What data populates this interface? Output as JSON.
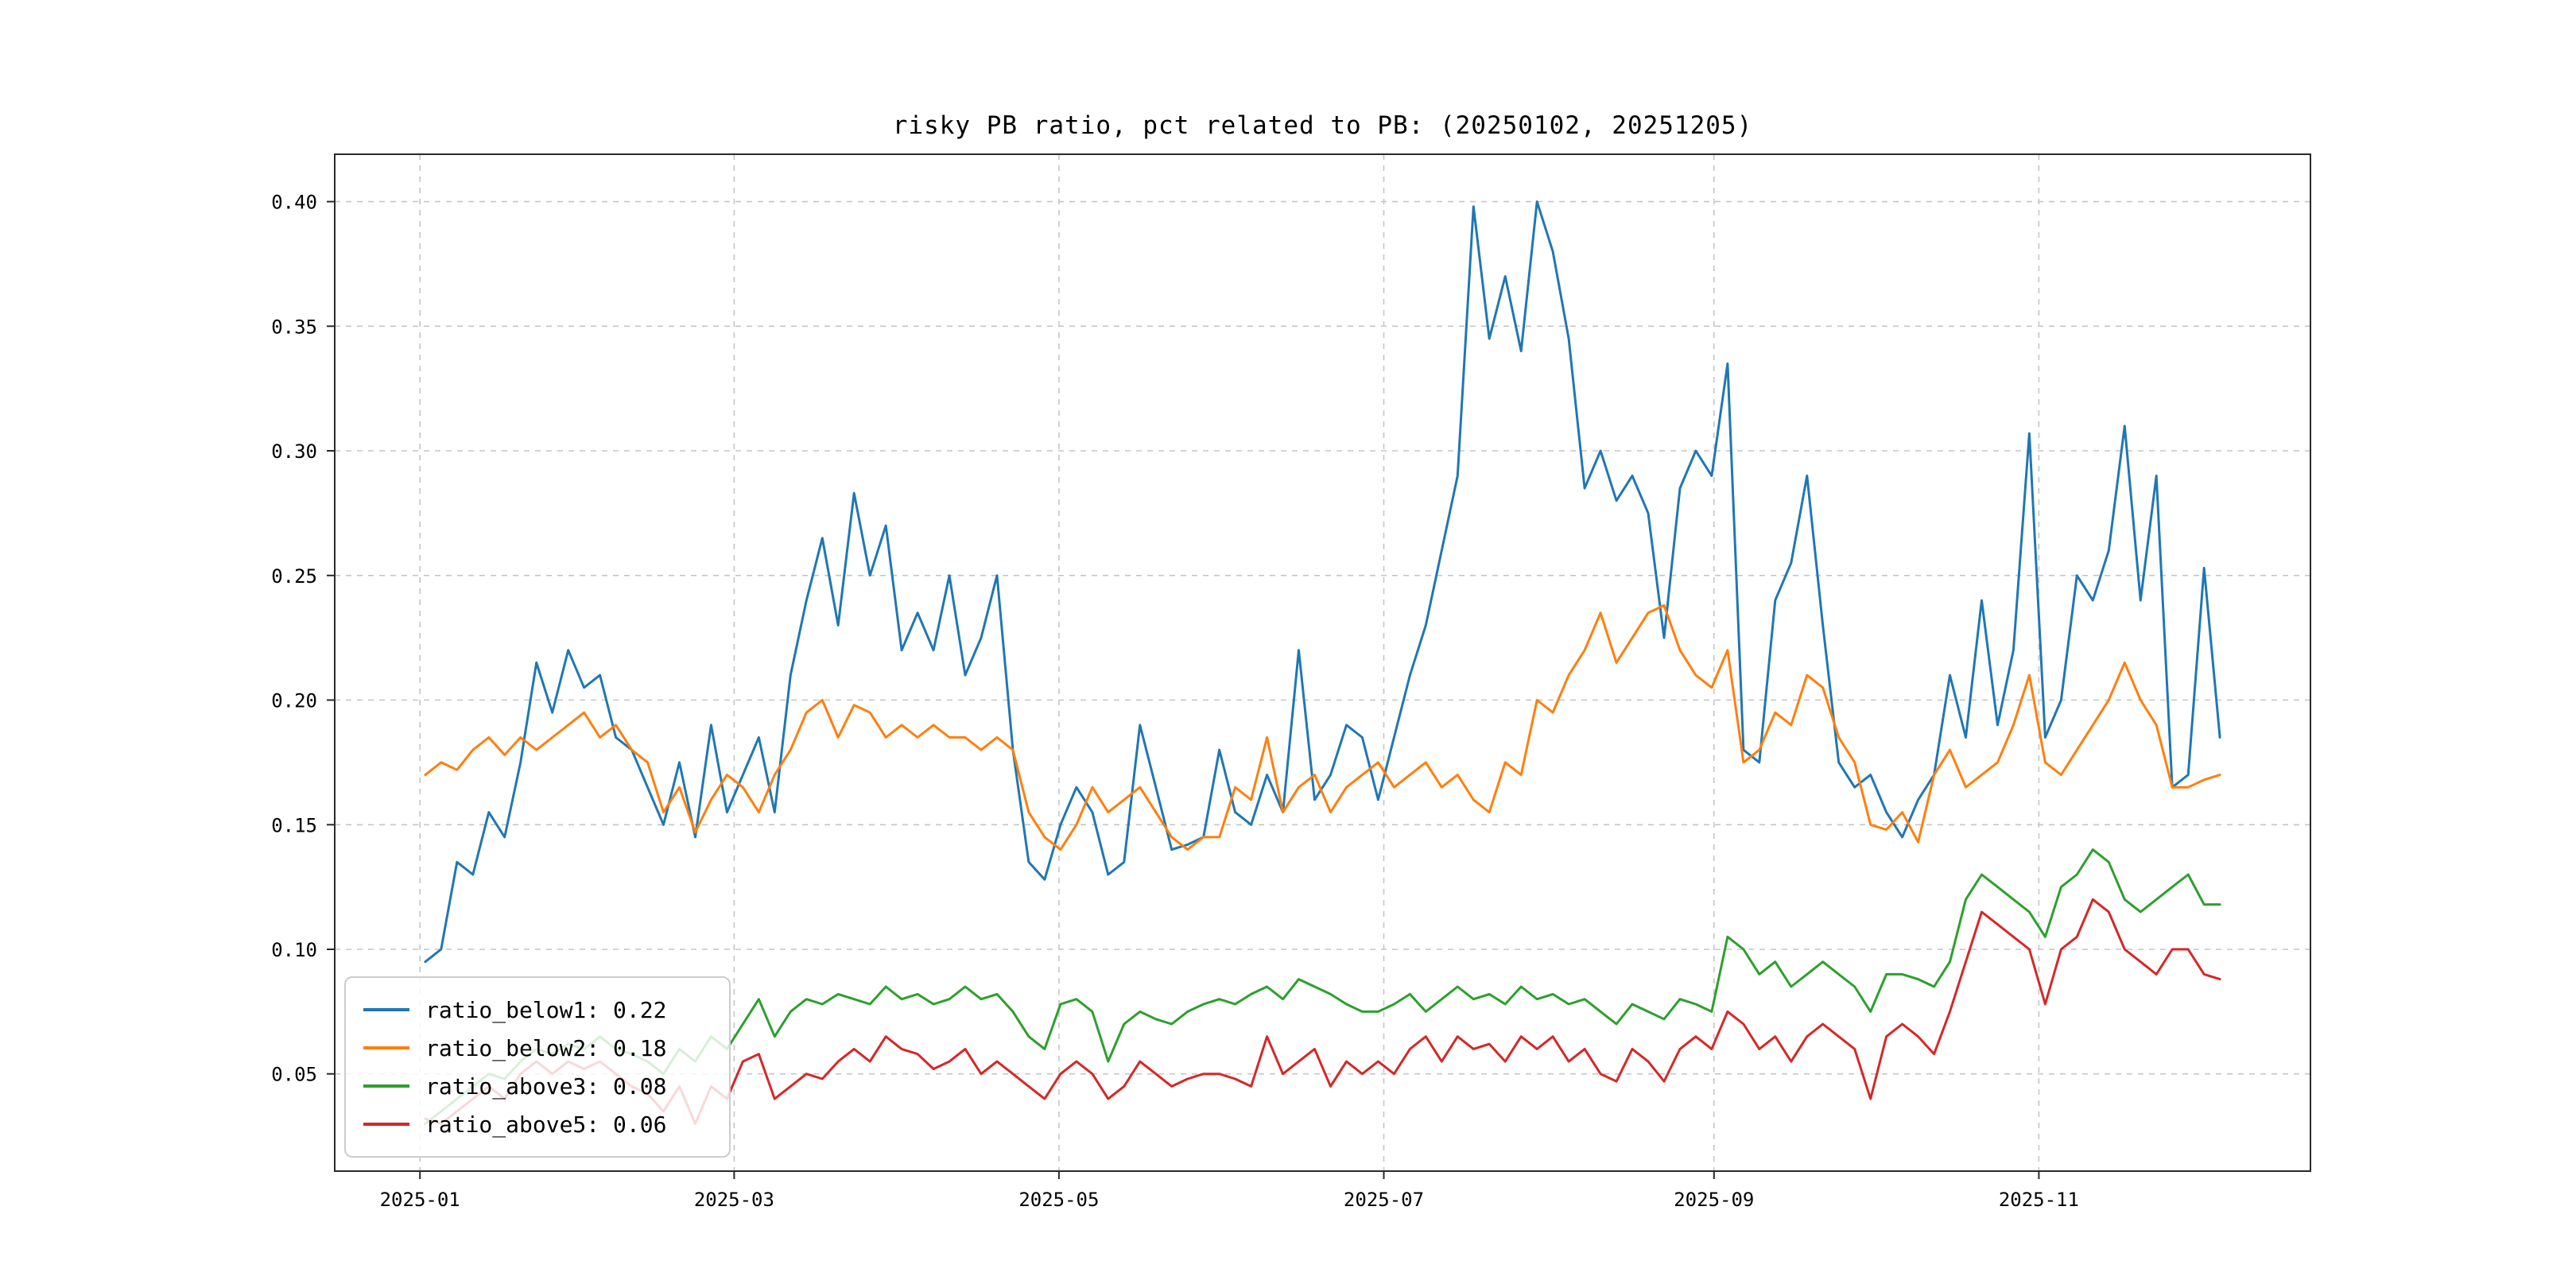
{
  "title": "risky PB ratio, pct related to PB: (20250102, 20251205)",
  "chart_data": {
    "type": "line",
    "title": "risky PB ratio, pct related to PB: (20250102, 20251205)",
    "xlabel": "",
    "ylabel": "",
    "grid": {
      "show": true,
      "style": "dashed",
      "color": "#c6c6c6"
    },
    "legend": {
      "position": "lower left"
    },
    "x_unit": "days since 2025-01-01",
    "x_start_day": 1,
    "x_end_day": 338,
    "x_axis": {
      "lim": [
        -16,
        355
      ],
      "ticks": [
        {
          "label": "2025-01",
          "day": 0
        },
        {
          "label": "2025-03",
          "day": 59
        },
        {
          "label": "2025-05",
          "day": 120
        },
        {
          "label": "2025-07",
          "day": 181
        },
        {
          "label": "2025-09",
          "day": 243
        },
        {
          "label": "2025-11",
          "day": 304
        }
      ]
    },
    "y_axis": {
      "lim": [
        0.011,
        0.419
      ],
      "ticks": [
        {
          "label": "0.05",
          "value": 0.05
        },
        {
          "label": "0.10",
          "value": 0.1
        },
        {
          "label": "0.15",
          "value": 0.15
        },
        {
          "label": "0.20",
          "value": 0.2
        },
        {
          "label": "0.25",
          "value": 0.25
        },
        {
          "label": "0.30",
          "value": 0.3
        },
        {
          "label": "0.35",
          "value": 0.35
        },
        {
          "label": "0.40",
          "value": 0.4
        }
      ]
    },
    "series": [
      {
        "name": "ratio_below1",
        "label": "ratio_below1: 0.22",
        "color": "#1f77b4",
        "values": [
          0.095,
          0.1,
          0.135,
          0.13,
          0.155,
          0.145,
          0.175,
          0.215,
          0.195,
          0.22,
          0.205,
          0.21,
          0.185,
          0.18,
          0.165,
          0.15,
          0.175,
          0.145,
          0.19,
          0.155,
          0.17,
          0.185,
          0.155,
          0.21,
          0.24,
          0.265,
          0.23,
          0.283,
          0.25,
          0.27,
          0.22,
          0.235,
          0.22,
          0.25,
          0.21,
          0.225,
          0.25,
          0.18,
          0.135,
          0.128,
          0.15,
          0.165,
          0.155,
          0.13,
          0.135,
          0.19,
          0.165,
          0.14,
          0.142,
          0.145,
          0.18,
          0.155,
          0.15,
          0.17,
          0.155,
          0.22,
          0.16,
          0.17,
          0.19,
          0.185,
          0.16,
          0.185,
          0.21,
          0.23,
          0.26,
          0.29,
          0.398,
          0.345,
          0.37,
          0.34,
          0.4,
          0.38,
          0.345,
          0.285,
          0.3,
          0.28,
          0.29,
          0.275,
          0.225,
          0.285,
          0.3,
          0.29,
          0.335,
          0.18,
          0.175,
          0.24,
          0.255,
          0.29,
          0.23,
          0.175,
          0.165,
          0.17,
          0.155,
          0.145,
          0.16,
          0.17,
          0.21,
          0.185,
          0.24,
          0.19,
          0.22,
          0.307,
          0.185,
          0.2,
          0.25,
          0.24,
          0.26,
          0.31,
          0.24,
          0.29,
          0.165,
          0.17,
          0.253,
          0.185
        ]
      },
      {
        "name": "ratio_below2",
        "label": "ratio_below2: 0.18",
        "color": "#ff7f0e",
        "values": [
          0.17,
          0.175,
          0.172,
          0.18,
          0.185,
          0.178,
          0.185,
          0.18,
          0.185,
          0.19,
          0.195,
          0.185,
          0.19,
          0.18,
          0.175,
          0.155,
          0.165,
          0.147,
          0.16,
          0.17,
          0.165,
          0.155,
          0.17,
          0.18,
          0.195,
          0.2,
          0.185,
          0.198,
          0.195,
          0.185,
          0.19,
          0.185,
          0.19,
          0.185,
          0.185,
          0.18,
          0.185,
          0.18,
          0.155,
          0.145,
          0.14,
          0.15,
          0.165,
          0.155,
          0.16,
          0.165,
          0.155,
          0.145,
          0.14,
          0.145,
          0.145,
          0.165,
          0.16,
          0.185,
          0.155,
          0.165,
          0.17,
          0.155,
          0.165,
          0.17,
          0.175,
          0.165,
          0.17,
          0.175,
          0.165,
          0.17,
          0.16,
          0.155,
          0.175,
          0.17,
          0.2,
          0.195,
          0.21,
          0.22,
          0.235,
          0.215,
          0.225,
          0.235,
          0.238,
          0.22,
          0.21,
          0.205,
          0.22,
          0.175,
          0.18,
          0.195,
          0.19,
          0.21,
          0.205,
          0.185,
          0.175,
          0.15,
          0.148,
          0.155,
          0.143,
          0.17,
          0.18,
          0.165,
          0.17,
          0.175,
          0.19,
          0.21,
          0.175,
          0.17,
          0.18,
          0.19,
          0.2,
          0.215,
          0.2,
          0.19,
          0.165,
          0.165,
          0.168,
          0.17
        ]
      },
      {
        "name": "ratio_above3",
        "label": "ratio_above3: 0.08",
        "color": "#2ca02c",
        "values": [
          0.03,
          0.035,
          0.04,
          0.045,
          0.05,
          0.048,
          0.055,
          0.06,
          0.058,
          0.062,
          0.06,
          0.065,
          0.06,
          0.058,
          0.055,
          0.05,
          0.06,
          0.055,
          0.065,
          0.06,
          0.07,
          0.08,
          0.065,
          0.075,
          0.08,
          0.078,
          0.082,
          0.08,
          0.078,
          0.085,
          0.08,
          0.082,
          0.078,
          0.08,
          0.085,
          0.08,
          0.082,
          0.075,
          0.065,
          0.06,
          0.078,
          0.08,
          0.075,
          0.055,
          0.07,
          0.075,
          0.072,
          0.07,
          0.075,
          0.078,
          0.08,
          0.078,
          0.082,
          0.085,
          0.08,
          0.088,
          0.085,
          0.082,
          0.078,
          0.075,
          0.075,
          0.078,
          0.082,
          0.075,
          0.08,
          0.085,
          0.08,
          0.082,
          0.078,
          0.085,
          0.08,
          0.082,
          0.078,
          0.08,
          0.075,
          0.07,
          0.078,
          0.075,
          0.072,
          0.08,
          0.078,
          0.075,
          0.105,
          0.1,
          0.09,
          0.095,
          0.085,
          0.09,
          0.095,
          0.09,
          0.085,
          0.075,
          0.09,
          0.09,
          0.088,
          0.085,
          0.095,
          0.12,
          0.13,
          0.125,
          0.12,
          0.115,
          0.105,
          0.125,
          0.13,
          0.14,
          0.135,
          0.12,
          0.115,
          0.12,
          0.125,
          0.13,
          0.118,
          0.118
        ]
      },
      {
        "name": "ratio_above5",
        "label": "ratio_above5: 0.06",
        "color": "#d62728",
        "values": [
          0.032,
          0.03,
          0.035,
          0.04,
          0.045,
          0.04,
          0.05,
          0.055,
          0.05,
          0.055,
          0.052,
          0.055,
          0.05,
          0.045,
          0.042,
          0.035,
          0.045,
          0.03,
          0.045,
          0.04,
          0.055,
          0.058,
          0.04,
          0.045,
          0.05,
          0.048,
          0.055,
          0.06,
          0.055,
          0.065,
          0.06,
          0.058,
          0.052,
          0.055,
          0.06,
          0.05,
          0.055,
          0.05,
          0.045,
          0.04,
          0.05,
          0.055,
          0.05,
          0.04,
          0.045,
          0.055,
          0.05,
          0.045,
          0.048,
          0.05,
          0.05,
          0.048,
          0.045,
          0.065,
          0.05,
          0.055,
          0.06,
          0.045,
          0.055,
          0.05,
          0.055,
          0.05,
          0.06,
          0.065,
          0.055,
          0.065,
          0.06,
          0.062,
          0.055,
          0.065,
          0.06,
          0.065,
          0.055,
          0.06,
          0.05,
          0.047,
          0.06,
          0.055,
          0.047,
          0.06,
          0.065,
          0.06,
          0.075,
          0.07,
          0.06,
          0.065,
          0.055,
          0.065,
          0.07,
          0.065,
          0.06,
          0.04,
          0.065,
          0.07,
          0.065,
          0.058,
          0.075,
          0.095,
          0.115,
          0.11,
          0.105,
          0.1,
          0.078,
          0.1,
          0.105,
          0.12,
          0.115,
          0.1,
          0.095,
          0.09,
          0.1,
          0.1,
          0.09,
          0.088
        ]
      }
    ]
  }
}
